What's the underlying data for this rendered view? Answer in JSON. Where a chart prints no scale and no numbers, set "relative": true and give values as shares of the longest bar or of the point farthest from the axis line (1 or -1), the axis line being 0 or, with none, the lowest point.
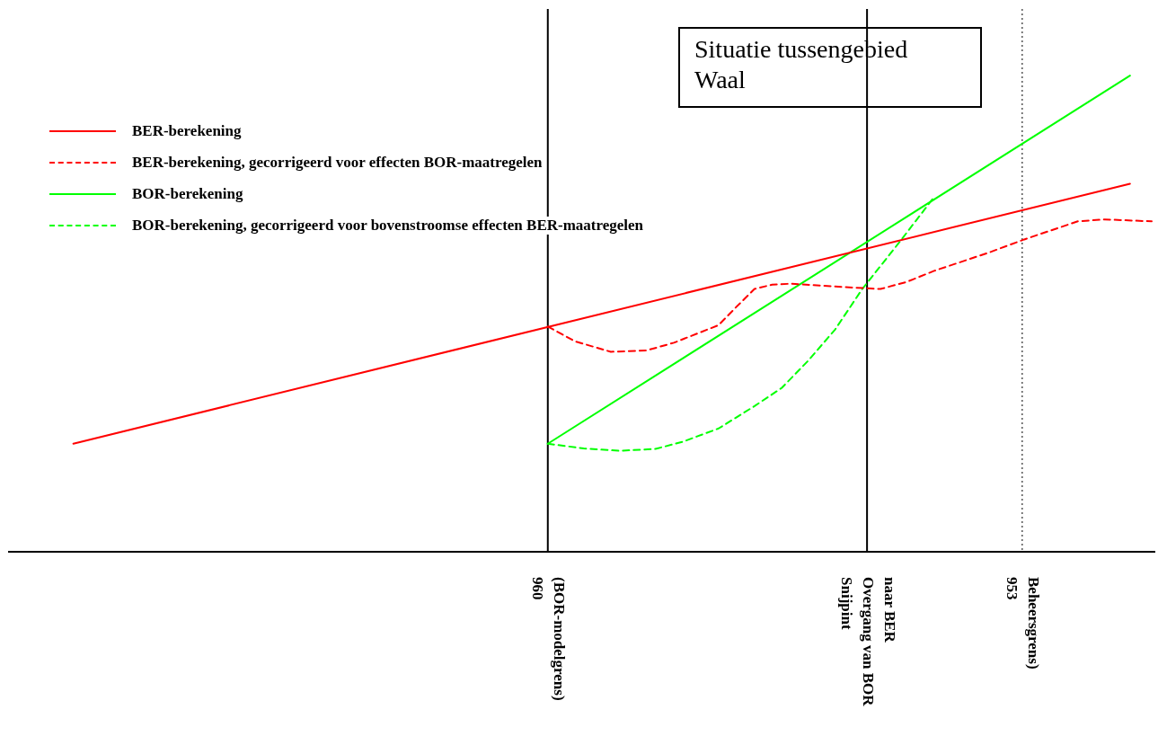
{
  "chart_data": {
    "type": "line",
    "title": "Situatie tussengebied Waal",
    "relative": true,
    "legend": "top left",
    "grid": false,
    "marker": "none",
    "tick_labels": "x",
    "xlim": [
      967.95,
      951.05
    ],
    "xticks": [
      {
        "value": 960,
        "label": "960\n(BOR-modelgrens)"
      },
      {
        "value": 955.29,
        "label": "Snijpint\nOvergang van BOR\nnaar BER"
      },
      {
        "value": 953,
        "label": "953\nBeheersgrens)"
      }
    ],
    "series": [
      {
        "name": "BER-berekening",
        "color": "#ff0000",
        "line_style": "solid",
        "x": [
          967.0,
          951.41
        ],
        "values": [
          0.227,
          0.773
        ]
      },
      {
        "name": "BER-berekening, gecorrigeerd voor effecten BOR-maatregelen",
        "color": "#ff0000",
        "line_style": "dashed",
        "x": [
          960,
          959.6,
          959.07,
          958.54,
          958.14,
          957.48,
          957.22,
          956.95,
          956.69,
          956.42,
          955.63,
          955.09,
          954.7,
          954.3,
          953.5,
          952.97,
          952.18,
          951.78,
          951.09
        ],
        "values": [
          0.473,
          0.442,
          0.42,
          0.423,
          0.439,
          0.476,
          0.514,
          0.552,
          0.561,
          0.563,
          0.556,
          0.552,
          0.567,
          0.59,
          0.628,
          0.656,
          0.694,
          0.698,
          0.694
        ]
      },
      {
        "name": "BOR-berekening",
        "color": "#00ff00",
        "line_style": "solid",
        "x": [
          960,
          951.41
        ],
        "values": [
          0.227,
          1
        ]
      },
      {
        "name": "BOR-berekening, gecorrigeerd voor bovenstroomse effecten BER-maatregelen",
        "color": "#00ff00",
        "line_style": "dashed",
        "x": [
          960,
          959.47,
          958.94,
          958.41,
          958.01,
          957.48,
          956.95,
          956.55,
          956.16,
          955.76,
          955.36,
          954.83,
          954.3
        ],
        "values": [
          0.227,
          0.217,
          0.212,
          0.216,
          0.231,
          0.259,
          0.306,
          0.344,
          0.401,
          0.467,
          0.552,
          0.647,
          0.745
        ]
      }
    ],
    "ref_lines": [
      {
        "axis": "x",
        "value": 960,
        "color": "#000000",
        "line_style": "solid"
      },
      {
        "axis": "x",
        "value": 955.29,
        "color": "#000000",
        "line_style": "solid"
      },
      {
        "axis": "x",
        "value": 953,
        "color": "#000000",
        "line_style": "dotted"
      }
    ]
  }
}
